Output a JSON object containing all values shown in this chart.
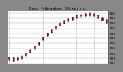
{
  "title": "Baro   Milwaukee   29.xx inHg",
  "hours": [
    0,
    1,
    2,
    3,
    4,
    5,
    6,
    7,
    8,
    9,
    10,
    11,
    12,
    13,
    14,
    15,
    16,
    17,
    18,
    19,
    20,
    21,
    22,
    23
  ],
  "pressure": [
    29.1,
    29.08,
    29.09,
    29.12,
    29.18,
    29.25,
    29.32,
    29.4,
    29.5,
    29.58,
    29.65,
    29.72,
    29.78,
    29.83,
    29.87,
    29.9,
    29.93,
    29.95,
    29.97,
    29.98,
    29.97,
    29.93,
    29.88,
    29.84
  ],
  "hi_pressure": [
    29.12,
    29.1,
    29.11,
    29.14,
    29.2,
    29.27,
    29.34,
    29.42,
    29.52,
    29.6,
    29.67,
    29.74,
    29.8,
    29.85,
    29.89,
    29.92,
    29.95,
    29.97,
    29.99,
    30.0,
    29.99,
    29.95,
    29.9,
    29.86
  ],
  "lo_pressure": [
    29.08,
    29.06,
    29.07,
    29.1,
    29.16,
    29.23,
    29.3,
    29.38,
    29.48,
    29.56,
    29.63,
    29.7,
    29.76,
    29.81,
    29.85,
    29.88,
    29.91,
    29.93,
    29.95,
    29.96,
    29.95,
    29.91,
    29.86,
    29.82
  ],
  "ylim": [
    29.0,
    30.05
  ],
  "yticks": [
    29.0,
    29.1,
    29.2,
    29.3,
    29.4,
    29.5,
    29.6,
    29.7,
    29.8,
    29.9,
    30.0
  ],
  "ytick_labels": [
    "29.0",
    "29.1",
    "29.2",
    "29.3",
    "29.4",
    "29.5",
    "29.6",
    "29.7",
    "29.8",
    "29.9",
    "30.0"
  ],
  "dot_color_main": "#cc0000",
  "dot_color_hi": "#222222",
  "dot_color_lo": "#222222",
  "grid_color": "#aaaaaa",
  "bg_color": "#ffffff",
  "title_color": "#000000",
  "title_fontsize": 4.0,
  "tick_fontsize": 3.0,
  "figure_bg": "#888888",
  "vgrid_every": 4,
  "xlim": [
    -0.5,
    23.5
  ]
}
